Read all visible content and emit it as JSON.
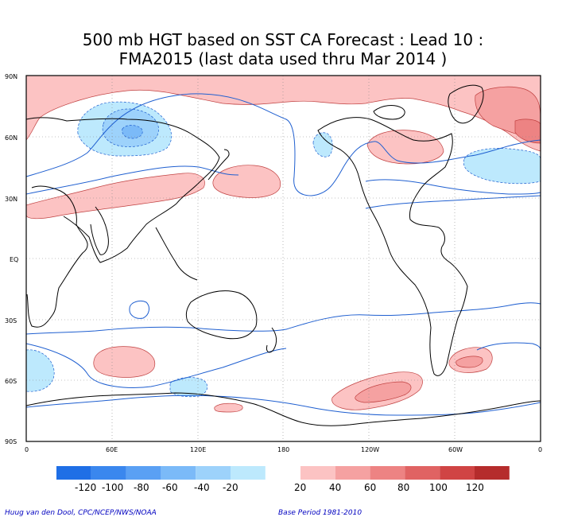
{
  "title": {
    "line1": "500 mb HGT based on SST CA Forecast : Lead 10 :",
    "line2": "FMA2015 (last data used thru Mar 2014 )"
  },
  "map": {
    "lat_labels": [
      "90N",
      "60N",
      "30N",
      "EQ",
      "30S",
      "60S",
      "90S"
    ],
    "lon_labels": [
      "0",
      "60E",
      "120E",
      "180",
      "120W",
      "60W",
      "0"
    ],
    "anomaly_regions": [
      {
        "name": "arctic-positive",
        "sign": "positive",
        "level": 20
      },
      {
        "name": "arctic-positive-core-east",
        "sign": "positive",
        "level": 40
      },
      {
        "name": "arctic-positive-core-far-east",
        "sign": "positive",
        "level": 60
      },
      {
        "name": "siberia-negative",
        "sign": "negative",
        "level": -20
      },
      {
        "name": "siberia-negative-core",
        "sign": "negative",
        "level": -40
      },
      {
        "name": "siberia-negative-center",
        "sign": "negative",
        "level": -60
      },
      {
        "name": "asia-subtropical-positive",
        "sign": "positive",
        "level": 20
      },
      {
        "name": "nw-pacific-positive",
        "sign": "positive",
        "level": 20
      },
      {
        "name": "alaska-negative",
        "sign": "negative",
        "level": -20
      },
      {
        "name": "canada-positive",
        "sign": "positive",
        "level": 20
      },
      {
        "name": "n-atlantic-negative",
        "sign": "negative",
        "level": -20
      },
      {
        "name": "s-indian-positive",
        "sign": "positive",
        "level": 20
      },
      {
        "name": "s-atlantic-negative",
        "sign": "negative",
        "level": -20
      },
      {
        "name": "s-ocean-negative",
        "sign": "negative",
        "level": -20
      },
      {
        "name": "antarctic-positive",
        "sign": "positive",
        "level": 20
      },
      {
        "name": "s-pacific-positive",
        "sign": "positive",
        "level": 20
      },
      {
        "name": "s-pacific-positive-core",
        "sign": "positive",
        "level": 40
      },
      {
        "name": "s-america-positive",
        "sign": "positive",
        "level": 20
      },
      {
        "name": "s-america-positive-core",
        "sign": "positive",
        "level": 40
      }
    ]
  },
  "colorbar": {
    "negative": [
      {
        "color": "#1f6fe6"
      },
      {
        "color": "#3a87ee"
      },
      {
        "color": "#5aa0f4"
      },
      {
        "color": "#7bbaf8"
      },
      {
        "color": "#9dd2fb"
      },
      {
        "color": "#bde9fd"
      }
    ],
    "positive": [
      {
        "color": "#fcc3c3"
      },
      {
        "color": "#f5a1a1"
      },
      {
        "color": "#ed8383"
      },
      {
        "color": "#e06363"
      },
      {
        "color": "#d04444"
      },
      {
        "color": "#b52c2c"
      }
    ],
    "labels": [
      "-120",
      "-100",
      "-80",
      "-60",
      "-40",
      "-20",
      "20",
      "40",
      "60",
      "80",
      "100",
      "120"
    ]
  },
  "colors": {
    "neg1": "#bde9fd",
    "neg2": "#9dd2fb",
    "neg3": "#7bbaf8",
    "pos1": "#fcc3c3",
    "pos2": "#f5a1a1",
    "pos3": "#ed8383",
    "contour": "#1f5fd0"
  },
  "footer": {
    "credit": "Huug van den Dool, CPC/NCEP/NWS/NOAA",
    "base_period": "Base Period 1981-2010"
  }
}
